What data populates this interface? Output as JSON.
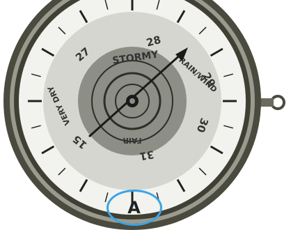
{
  "weather_words": {
    "stormy": "STORMY",
    "rain_wind": "RAIN/WIND",
    "fair": "FAIR",
    "very_dry": "VERY DRY"
  },
  "scale_numbers": [
    "28",
    "29",
    "30",
    "31",
    "15",
    "27"
  ],
  "choice_label": "A",
  "colors": {
    "outer_ring": "#4a4a3e",
    "dial_light": "#d5d6d0",
    "dial_white": "#f2f2ee",
    "inner_gray": "#8d8e86",
    "badge_border": "#3aa4e6"
  }
}
